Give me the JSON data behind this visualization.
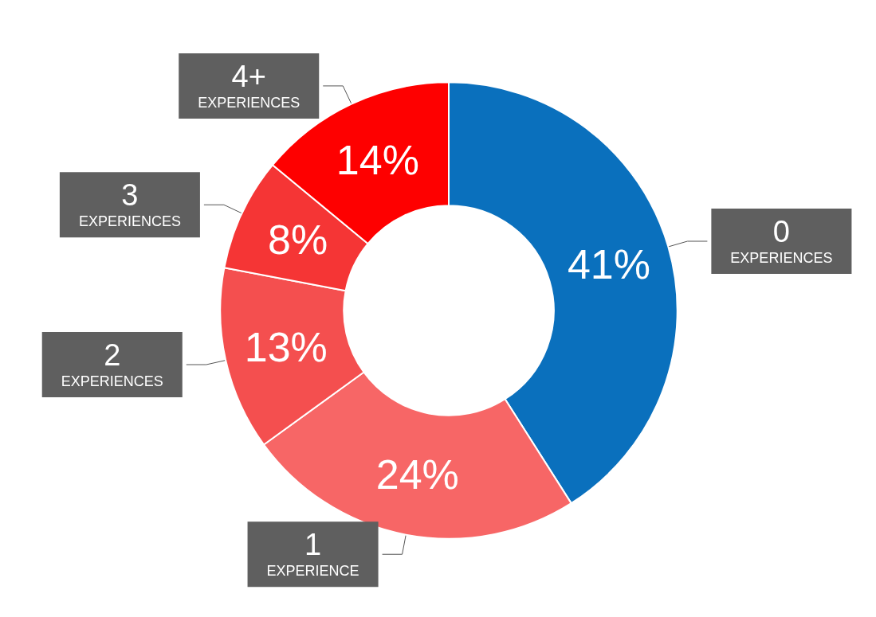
{
  "chart_data": {
    "type": "donut",
    "categories": [
      "0 EXPERIENCES",
      "1 EXPERIENCE",
      "2 EXPERIENCES",
      "3 EXPERIENCES",
      "4+ EXPERIENCES"
    ],
    "values": [
      41,
      24,
      13,
      8,
      14
    ],
    "value_labels": [
      "41%",
      "24%",
      "13%",
      "8%",
      "14%"
    ],
    "colors": [
      "#0a70bd",
      "#f76666",
      "#f44f4f",
      "#f53535",
      "#fe0000"
    ],
    "legend": false
  }
}
